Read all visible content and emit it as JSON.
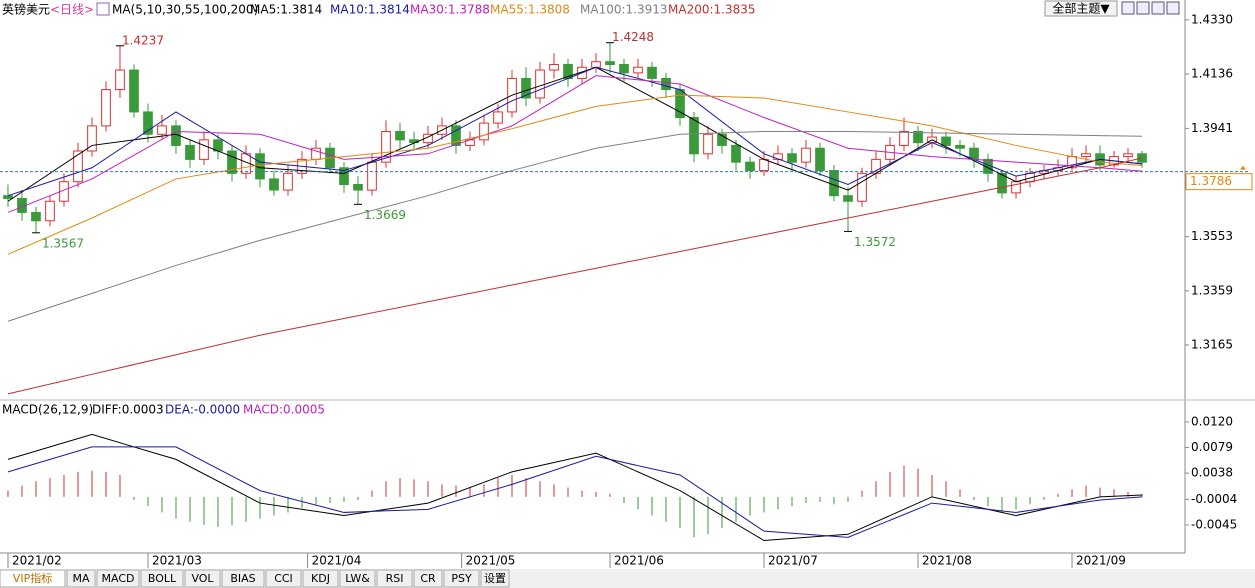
{
  "header": {
    "symbol": "英镑美元",
    "period": "<日线>",
    "ma_params": "MA(5,10,30,55,100,200)",
    "theme": "全部主题▼"
  },
  "chart_data": [
    {
      "type": "candlestick",
      "up_color": "#e03030",
      "down_color": "#3a9a3a",
      "xlim": [
        -0.57,
        84.07
      ],
      "xticks": [
        {
          "value": 0,
          "label": "2021/02"
        },
        {
          "value": 10,
          "label": "2021/03"
        },
        {
          "value": 21.4,
          "label": "2021/04"
        },
        {
          "value": 32.4,
          "label": "2021/05"
        },
        {
          "value": 43,
          "label": "2021/06"
        },
        {
          "value": 54,
          "label": "2021/07"
        },
        {
          "value": 65,
          "label": "2021/08"
        },
        {
          "value": 76,
          "label": "2021/09"
        }
      ],
      "ylim": [
        1.2968,
        1.4401
      ],
      "yticks": [
        {
          "value": 1.433,
          "label": "1.4330"
        },
        1.4136,
        1.3941,
        1.3553,
        1.3359,
        1.3165
      ],
      "last_price": 1.3786,
      "candles": [
        [
          1.37,
          1.374,
          1.366,
          1.369
        ],
        [
          1.369,
          1.372,
          1.361,
          1.364
        ],
        [
          1.364,
          1.366,
          1.3567,
          1.361
        ],
        [
          1.361,
          1.37,
          1.359,
          1.368
        ],
        [
          1.368,
          1.378,
          1.366,
          1.375
        ],
        [
          1.375,
          1.389,
          1.373,
          1.386
        ],
        [
          1.386,
          1.398,
          1.384,
          1.395
        ],
        [
          1.395,
          1.411,
          1.393,
          1.408
        ],
        [
          1.408,
          1.4237,
          1.405,
          1.415
        ],
        [
          1.415,
          1.417,
          1.398,
          1.4
        ],
        [
          1.4,
          1.403,
          1.389,
          1.392
        ],
        [
          1.392,
          1.399,
          1.39,
          1.395
        ],
        [
          1.395,
          1.397,
          1.385,
          1.388
        ],
        [
          1.388,
          1.39,
          1.38,
          1.383
        ],
        [
          1.383,
          1.393,
          1.381,
          1.39
        ],
        [
          1.39,
          1.392,
          1.383,
          1.386
        ],
        [
          1.386,
          1.388,
          1.375,
          1.378
        ],
        [
          1.378,
          1.388,
          1.376,
          1.385
        ],
        [
          1.385,
          1.387,
          1.373,
          1.376
        ],
        [
          1.376,
          1.379,
          1.37,
          1.372
        ],
        [
          1.372,
          1.381,
          1.37,
          1.378
        ],
        [
          1.378,
          1.386,
          1.376,
          1.383
        ],
        [
          1.383,
          1.39,
          1.381,
          1.387
        ],
        [
          1.387,
          1.389,
          1.378,
          1.38
        ],
        [
          1.38,
          1.382,
          1.371,
          1.374
        ],
        [
          1.374,
          1.377,
          1.3669,
          1.372
        ],
        [
          1.372,
          1.385,
          1.37,
          1.382
        ],
        [
          1.382,
          1.397,
          1.38,
          1.393
        ],
        [
          1.393,
          1.396,
          1.387,
          1.39
        ],
        [
          1.39,
          1.393,
          1.386,
          1.389
        ],
        [
          1.389,
          1.395,
          1.387,
          1.392
        ],
        [
          1.392,
          1.398,
          1.39,
          1.395
        ],
        [
          1.395,
          1.397,
          1.385,
          1.388
        ],
        [
          1.388,
          1.393,
          1.386,
          1.39
        ],
        [
          1.39,
          1.399,
          1.388,
          1.396
        ],
        [
          1.396,
          1.403,
          1.394,
          1.4
        ],
        [
          1.4,
          1.415,
          1.398,
          1.412
        ],
        [
          1.412,
          1.416,
          1.402,
          1.405
        ],
        [
          1.405,
          1.418,
          1.403,
          1.415
        ],
        [
          1.415,
          1.421,
          1.412,
          1.417
        ],
        [
          1.417,
          1.419,
          1.409,
          1.412
        ],
        [
          1.412,
          1.419,
          1.41,
          1.416
        ],
        [
          1.416,
          1.421,
          1.414,
          1.418
        ],
        [
          1.418,
          1.4248,
          1.414,
          1.417
        ],
        [
          1.417,
          1.419,
          1.411,
          1.414
        ],
        [
          1.414,
          1.419,
          1.412,
          1.416
        ],
        [
          1.416,
          1.418,
          1.409,
          1.412
        ],
        [
          1.412,
          1.414,
          1.405,
          1.408
        ],
        [
          1.408,
          1.41,
          1.395,
          1.398
        ],
        [
          1.398,
          1.4,
          1.382,
          1.385
        ],
        [
          1.385,
          1.395,
          1.383,
          1.392
        ],
        [
          1.392,
          1.394,
          1.385,
          1.388
        ],
        [
          1.388,
          1.39,
          1.379,
          1.382
        ],
        [
          1.382,
          1.384,
          1.376,
          1.379
        ],
        [
          1.379,
          1.386,
          1.377,
          1.383
        ],
        [
          1.383,
          1.388,
          1.381,
          1.385
        ],
        [
          1.385,
          1.387,
          1.379,
          1.382
        ],
        [
          1.382,
          1.39,
          1.38,
          1.387
        ],
        [
          1.387,
          1.389,
          1.377,
          1.379
        ],
        [
          1.379,
          1.381,
          1.368,
          1.37
        ],
        [
          1.37,
          1.373,
          1.3572,
          1.368
        ],
        [
          1.368,
          1.38,
          1.366,
          1.378
        ],
        [
          1.378,
          1.386,
          1.376,
          1.383
        ],
        [
          1.383,
          1.391,
          1.381,
          1.388
        ],
        [
          1.388,
          1.398,
          1.386,
          1.393
        ],
        [
          1.393,
          1.395,
          1.386,
          1.389
        ],
        [
          1.389,
          1.394,
          1.387,
          1.391
        ],
        [
          1.391,
          1.393,
          1.385,
          1.388
        ],
        [
          1.388,
          1.39,
          1.384,
          1.387
        ],
        [
          1.387,
          1.389,
          1.38,
          1.383
        ],
        [
          1.383,
          1.385,
          1.375,
          1.378
        ],
        [
          1.378,
          1.379,
          1.369,
          1.371
        ],
        [
          1.371,
          1.377,
          1.369,
          1.375
        ],
        [
          1.375,
          1.38,
          1.373,
          1.378
        ],
        [
          1.378,
          1.381,
          1.376,
          1.379
        ],
        [
          1.379,
          1.383,
          1.377,
          1.38
        ],
        [
          1.38,
          1.387,
          1.379,
          1.384
        ],
        [
          1.384,
          1.388,
          1.382,
          1.385
        ],
        [
          1.385,
          1.388,
          1.379,
          1.381
        ],
        [
          1.381,
          1.386,
          1.38,
          1.384
        ],
        [
          1.384,
          1.387,
          1.382,
          1.385
        ],
        [
          1.385,
          1.386,
          1.38,
          1.382
        ]
      ],
      "annotations": [
        {
          "x": 8,
          "y": 1.4237,
          "side": "high"
        },
        {
          "x": 2,
          "y": 1.3567,
          "side": "low"
        },
        {
          "x": 25,
          "y": 1.3669,
          "side": "low"
        },
        {
          "x": 43,
          "y": 1.4248,
          "side": "high"
        },
        {
          "x": 60,
          "y": 1.3572,
          "side": "low"
        }
      ],
      "x": [
        0,
        6,
        12,
        18,
        24,
        30,
        36,
        42,
        48,
        54,
        60,
        66,
        72,
        78,
        81
      ],
      "series": [
        {
          "legend": "MA5:1.3814",
          "color": "#000000",
          "values": [
            1.368,
            1.388,
            1.392,
            1.38,
            1.378,
            1.391,
            1.406,
            1.416,
            1.4,
            1.383,
            1.372,
            1.39,
            1.375,
            1.383,
            1.3814
          ]
        },
        {
          "legend": "MA10:1.3814",
          "color": "#1a1aa0",
          "values": [
            1.37,
            1.38,
            1.4,
            1.382,
            1.379,
            1.388,
            1.404,
            1.416,
            1.408,
            1.385,
            1.374,
            1.389,
            1.377,
            1.383,
            1.3814
          ]
        },
        {
          "legend": "MA30:1.3788",
          "color": "#c020c0",
          "values": [
            1.364,
            1.376,
            1.393,
            1.392,
            1.383,
            1.385,
            1.395,
            1.413,
            1.41,
            1.398,
            1.387,
            1.384,
            1.382,
            1.38,
            1.3788
          ]
        },
        {
          "legend": "MA55:1.3808",
          "color": "#e08a10",
          "values": [
            1.349,
            1.362,
            1.376,
            1.381,
            1.384,
            1.387,
            1.394,
            1.402,
            1.406,
            1.405,
            1.4,
            1.395,
            1.388,
            1.382,
            1.3808
          ]
        },
        {
          "legend": "MA100:1.3913",
          "color": "#808080",
          "values": [
            1.325,
            1.335,
            1.345,
            1.354,
            1.362,
            1.37,
            1.379,
            1.387,
            1.392,
            1.393,
            1.393,
            1.3925,
            1.392,
            1.3915,
            1.3913
          ]
        },
        {
          "legend": "MA200:1.3835",
          "color": "#c03030",
          "values": [
            1.299,
            1.306,
            1.313,
            1.32,
            1.326,
            1.332,
            1.338,
            1.344,
            1.35,
            1.356,
            1.362,
            1.368,
            1.374,
            1.38,
            1.3835
          ]
        }
      ]
    },
    {
      "type": "macd",
      "title": "MACD(26,12,9)",
      "xlim": [
        -0.57,
        84.07
      ],
      "ylim": [
        -0.0082,
        0.0152
      ],
      "yticks": [
        {
          "value": 0.012,
          "label": "0.0120"
        },
        0.0079,
        0.0038,
        -0.0004,
        -0.0045
      ],
      "x": [
        0,
        6,
        12,
        18,
        24,
        30,
        36,
        42,
        48,
        54,
        60,
        66,
        72,
        78,
        81
      ],
      "series": [
        {
          "legend": "DIFF:0.0003",
          "color": "#000000",
          "values": [
            0.006,
            0.01,
            0.006,
            -0.001,
            -0.003,
            -0.001,
            0.004,
            0.007,
            0.001,
            -0.007,
            -0.006,
            0,
            -0.003,
            0,
            0.0003
          ]
        },
        {
          "legend": "DEA:-0.0000",
          "color": "#1a1aa0",
          "values": [
            0.004,
            0.008,
            0.008,
            0.001,
            -0.0025,
            -0.002,
            0.002,
            0.0065,
            0.0035,
            -0.0055,
            -0.0065,
            -0.001,
            -0.0025,
            -0.0005,
            0
          ]
        }
      ],
      "histogram": {
        "legend": "MACD:0.0005",
        "color": "#c020c0",
        "up_color": "#d03030",
        "down_color": "#3a9a3a",
        "values": [
          0.001,
          0.0018,
          0.0025,
          0.003,
          0.0035,
          0.004,
          0.0042,
          0.004,
          0.0035,
          -0.0005,
          -0.0015,
          -0.0025,
          -0.0035,
          -0.004,
          -0.0045,
          -0.0048,
          -0.0045,
          -0.004,
          -0.0035,
          -0.003,
          -0.0025,
          -0.0018,
          -0.0012,
          -0.001,
          -0.0008,
          -0.0005,
          0.001,
          0.0025,
          0.003,
          0.0028,
          0.0025,
          0.002,
          0.0018,
          0.0015,
          0.002,
          0.003,
          0.0035,
          0.003,
          0.0025,
          0.002,
          0.0015,
          0.001,
          0.0008,
          0.0005,
          -0.001,
          -0.002,
          -0.003,
          -0.004,
          -0.005,
          -0.0065,
          -0.006,
          -0.005,
          -0.004,
          -0.003,
          -0.0025,
          -0.002,
          -0.0015,
          -0.001,
          -0.0008,
          -0.0012,
          -0.0008,
          0.001,
          0.0025,
          0.004,
          0.005,
          0.0045,
          0.0035,
          0.0025,
          0.0012,
          -0.0005,
          -0.0015,
          -0.0025,
          -0.002,
          -0.0012,
          -0.0005,
          0.0005,
          0.0012,
          0.0018,
          0.0015,
          0.0012,
          0.0008,
          0.0005
        ]
      }
    }
  ],
  "toolbar": [
    "VIP指标",
    "MA",
    "MACD",
    "BOLL",
    "VOL",
    "BIAS",
    "CCI",
    "KDJ",
    "LW&",
    "RSI",
    "CR",
    "PSY",
    "设置"
  ]
}
